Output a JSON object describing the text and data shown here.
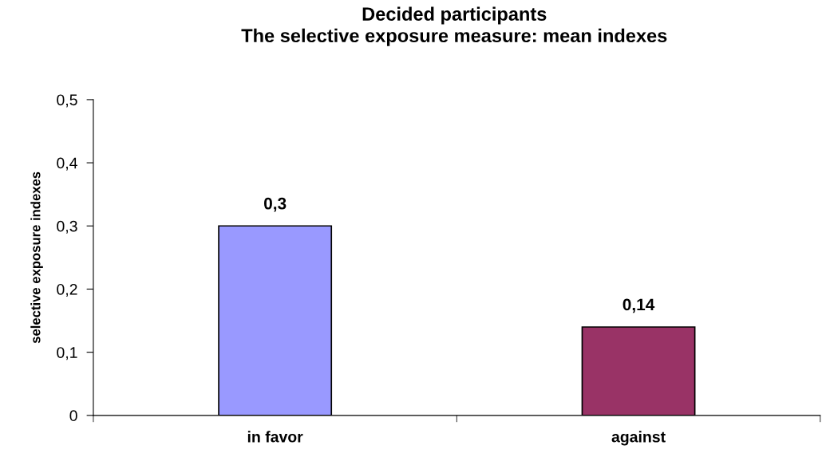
{
  "chart_data": {
    "type": "bar",
    "title": "Decided participants\nThe selective exposure measure: mean indexes",
    "ylabel": "selective exposure indexes",
    "categories": [
      "in favor",
      "against"
    ],
    "values": [
      0.3,
      0.14
    ],
    "colors": [
      "#9999ff",
      "#993366"
    ],
    "value_labels": [
      "0,3",
      "0,14"
    ],
    "ylim": [
      0,
      0.5
    ],
    "yticks": [
      {
        "value": 0,
        "label": "0"
      },
      {
        "value": 0.1,
        "label": "0,1"
      },
      {
        "value": 0.2,
        "label": "0,2"
      },
      {
        "value": 0.3,
        "label": "0,3"
      },
      {
        "value": 0.4,
        "label": "0,4"
      },
      {
        "value": 0.5,
        "label": "0,5"
      }
    ],
    "grid": false,
    "legend": false
  }
}
